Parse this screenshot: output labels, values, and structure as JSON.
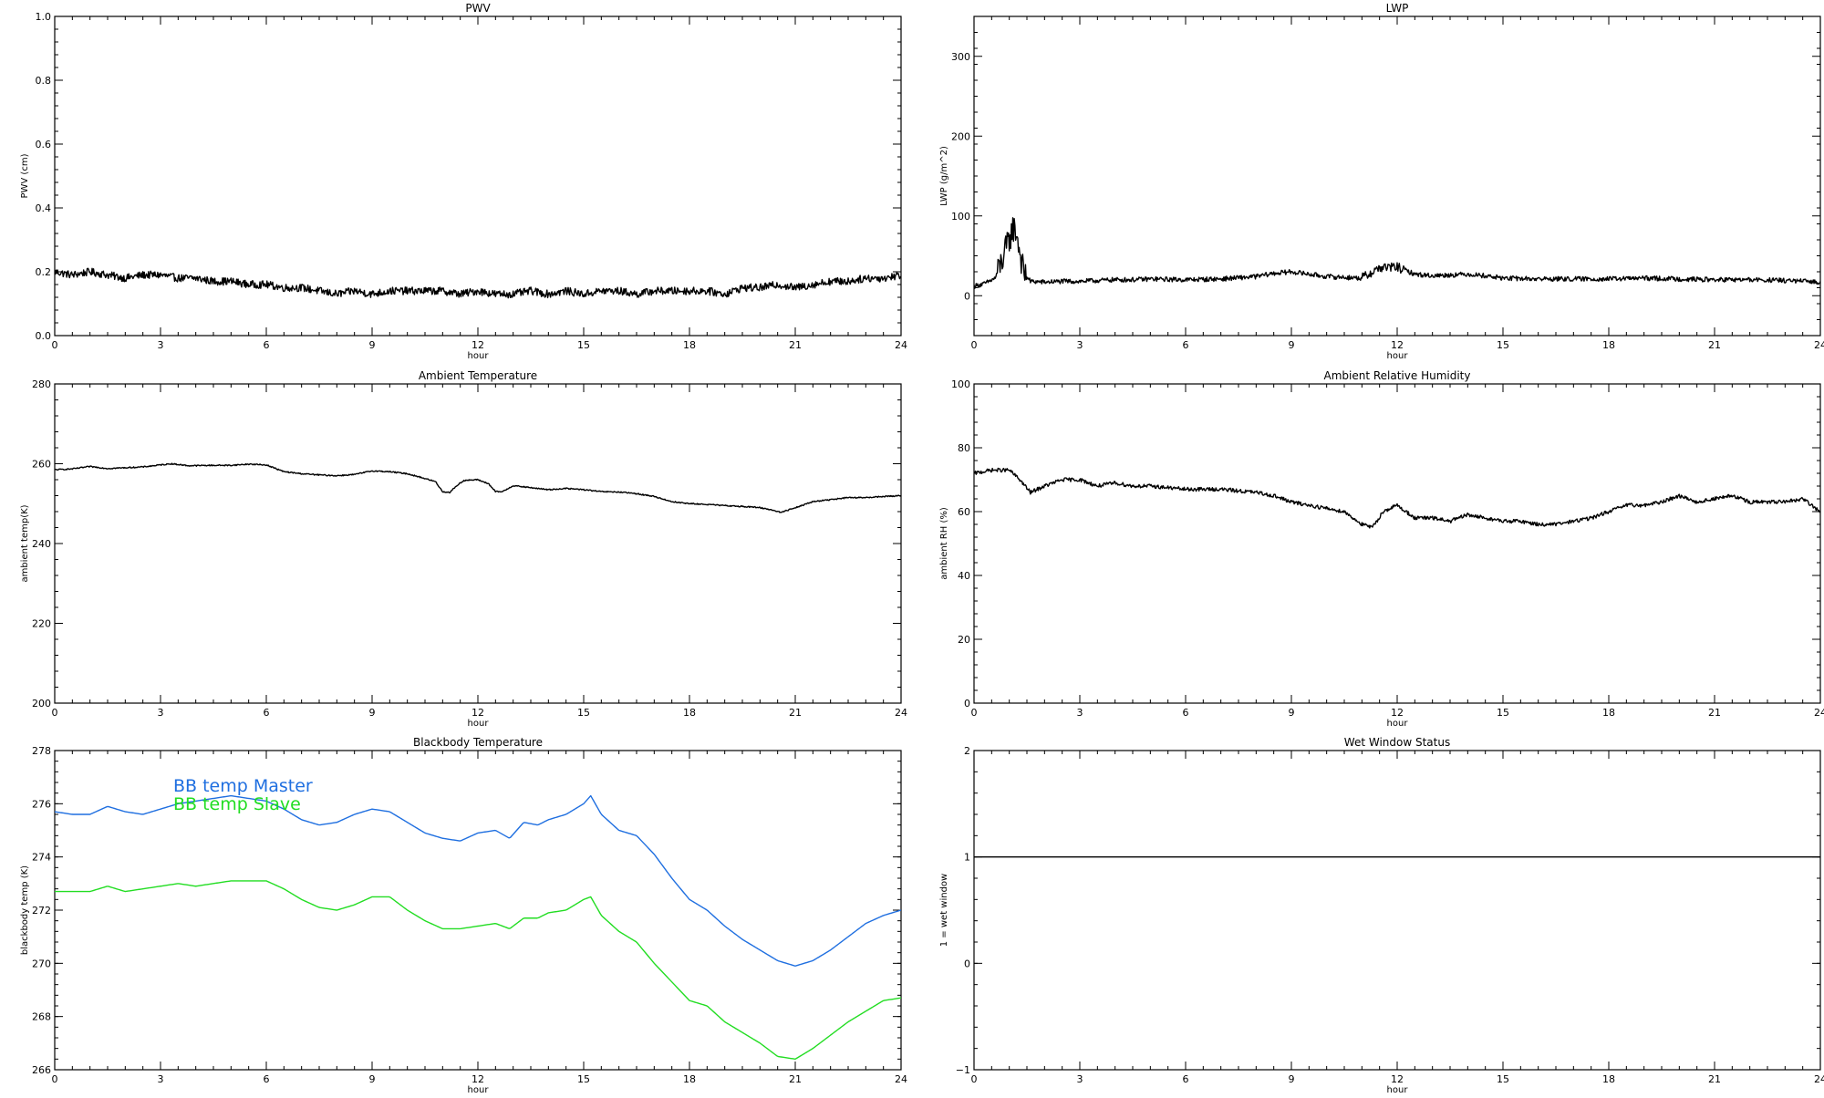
{
  "chart_data": [
    {
      "type": "line",
      "title": "PWV",
      "xlabel": "hour",
      "ylabel": "PWV (cm)",
      "xlim": [
        0,
        24
      ],
      "ylim": [
        0.0,
        1.0
      ],
      "xticks": [
        0,
        3,
        6,
        9,
        12,
        15,
        18,
        21,
        24
      ],
      "yticks": [
        "0.0",
        "0.2",
        "0.4",
        "0.6",
        "0.8",
        "1.0"
      ],
      "yticks_values": [
        0,
        0.2,
        0.4,
        0.6,
        0.8,
        1.0
      ],
      "noise": 0.012,
      "series": [
        {
          "color": "#000000",
          "x": [
            0,
            0.5,
            1,
            1.5,
            2,
            2.5,
            3,
            3.5,
            4,
            4.5,
            5,
            5.5,
            6,
            6.5,
            7,
            7.5,
            8,
            8.5,
            9,
            9.5,
            10,
            10.5,
            11,
            11.5,
            12,
            12.5,
            13,
            13.5,
            14,
            14.5,
            15,
            15.5,
            16,
            16.5,
            17,
            17.5,
            18,
            18.5,
            19,
            19.5,
            20,
            20.5,
            21,
            21.5,
            22,
            22.5,
            23,
            23.5,
            24
          ],
          "y": [
            0.2,
            0.19,
            0.2,
            0.19,
            0.18,
            0.19,
            0.19,
            0.18,
            0.18,
            0.17,
            0.17,
            0.16,
            0.16,
            0.15,
            0.15,
            0.14,
            0.13,
            0.14,
            0.13,
            0.14,
            0.14,
            0.14,
            0.14,
            0.13,
            0.14,
            0.13,
            0.13,
            0.14,
            0.13,
            0.14,
            0.13,
            0.14,
            0.14,
            0.13,
            0.14,
            0.14,
            0.14,
            0.14,
            0.13,
            0.15,
            0.15,
            0.16,
            0.15,
            0.16,
            0.17,
            0.17,
            0.18,
            0.18,
            0.19
          ]
        }
      ]
    },
    {
      "type": "line",
      "title": "LWP",
      "xlabel": "hour",
      "ylabel": "LWP (g/m^2)",
      "xlim": [
        0,
        24
      ],
      "ylim": [
        -50,
        350
      ],
      "xticks": [
        0,
        3,
        6,
        9,
        12,
        15,
        18,
        21,
        24
      ],
      "yticks": [
        "0",
        "100",
        "200",
        "300"
      ],
      "yticks_values": [
        0,
        100,
        200,
        300
      ],
      "noise": 3,
      "series": [
        {
          "color": "#000000",
          "x": [
            0,
            0.3,
            0.6,
            0.8,
            1.0,
            1.1,
            1.2,
            1.3,
            1.4,
            1.6,
            2,
            2.5,
            3,
            3.5,
            4,
            4.5,
            5,
            6,
            7,
            8,
            8.5,
            9,
            9.5,
            10,
            11,
            11.5,
            12,
            12.5,
            13,
            13.5,
            14,
            14.5,
            15,
            16,
            17,
            18,
            19,
            20,
            21,
            22,
            23,
            23.5,
            24
          ],
          "y": [
            12,
            15,
            22,
            45,
            70,
            85,
            80,
            55,
            30,
            18,
            17,
            18,
            18,
            19,
            20,
            20,
            21,
            20,
            21,
            24,
            28,
            30,
            27,
            24,
            22,
            35,
            36,
            27,
            25,
            26,
            27,
            25,
            22,
            21,
            21,
            21,
            22,
            21,
            20,
            20,
            19,
            18,
            17
          ]
        }
      ]
    },
    {
      "type": "line",
      "title": "Ambient Temperature",
      "xlabel": "hour",
      "ylabel": "ambient temp(K)",
      "xlim": [
        0,
        24
      ],
      "ylim": [
        200,
        280
      ],
      "xticks": [
        0,
        3,
        6,
        9,
        12,
        15,
        18,
        21,
        24
      ],
      "yticks": [
        "200",
        "220",
        "240",
        "260",
        "280"
      ],
      "yticks_values": [
        200,
        220,
        240,
        260,
        280
      ],
      "noise": 0.15,
      "series": [
        {
          "color": "#000000",
          "x": [
            0,
            0.5,
            1,
            1.5,
            2,
            2.5,
            3,
            3.3,
            3.8,
            4.5,
            5,
            5.5,
            6,
            6.5,
            7,
            7.5,
            8,
            8.5,
            9,
            9.5,
            10,
            10.5,
            10.8,
            11,
            11.2,
            11.4,
            11.6,
            12,
            12.3,
            12.5,
            12.7,
            13,
            13.5,
            14,
            14.5,
            15,
            15.5,
            16,
            16.5,
            17,
            17.5,
            18,
            18.5,
            19,
            19.5,
            20,
            20.3,
            20.6,
            21,
            21.5,
            22,
            22.5,
            23,
            23.5,
            24
          ],
          "y": [
            258.5,
            258.7,
            259.3,
            258.8,
            259,
            259.2,
            259.7,
            260,
            259.5,
            259.6,
            259.6,
            259.9,
            259.7,
            258,
            257.5,
            257.2,
            257,
            257.3,
            258.2,
            258,
            257.5,
            256.3,
            255.5,
            253,
            252.8,
            254.5,
            255.8,
            256,
            255,
            253,
            253,
            254.5,
            254,
            253.5,
            253.8,
            253.5,
            253,
            252.9,
            252.5,
            251.8,
            250.5,
            250,
            249.8,
            249.5,
            249.3,
            249,
            248.5,
            247.8,
            249,
            250.5,
            251,
            251.5,
            251.5,
            251.8,
            252
          ]
        }
      ]
    },
    {
      "type": "line",
      "title": "Ambient Relative Humidity",
      "xlabel": "hour",
      "ylabel": "ambient RH (%)",
      "xlim": [
        0,
        24
      ],
      "ylim": [
        0,
        100
      ],
      "xticks": [
        0,
        3,
        6,
        9,
        12,
        15,
        18,
        21,
        24
      ],
      "yticks": [
        "0",
        "20",
        "40",
        "60",
        "80",
        "100"
      ],
      "yticks_values": [
        0,
        20,
        40,
        60,
        80,
        100
      ],
      "noise": 0.6,
      "series": [
        {
          "color": "#000000",
          "x": [
            0,
            0.5,
            1,
            1.3,
            1.6,
            2,
            2.5,
            3,
            3.5,
            4,
            4.5,
            5,
            6,
            7,
            8,
            8.5,
            9,
            9.5,
            10,
            10.5,
            11,
            11.3,
            11.6,
            12,
            12.5,
            13,
            13.5,
            14,
            14.5,
            15,
            15.5,
            16,
            16.5,
            17,
            17.5,
            18,
            18.5,
            19,
            19.5,
            20,
            20.5,
            21,
            21.5,
            22,
            22.5,
            23,
            23.5,
            24
          ],
          "y": [
            72,
            73,
            73,
            70,
            66,
            68,
            70,
            70,
            68,
            69,
            68,
            68,
            67,
            67,
            66,
            65,
            63,
            62,
            61,
            60,
            56,
            55,
            60,
            62,
            58,
            58,
            57,
            59,
            58,
            57,
            57,
            56,
            56,
            57,
            58,
            60,
            62,
            62,
            63,
            65,
            63,
            64,
            65,
            63,
            63,
            63,
            64,
            60
          ]
        }
      ]
    },
    {
      "type": "line",
      "title": "Blackbody Temperature",
      "xlabel": "hour",
      "ylabel": "blackbody temp (K)",
      "xlim": [
        0,
        24
      ],
      "ylim": [
        266,
        278
      ],
      "xticks": [
        0,
        3,
        6,
        9,
        12,
        15,
        18,
        21,
        24
      ],
      "yticks": [
        "266",
        "268",
        "270",
        "272",
        "274",
        "276",
        "278"
      ],
      "yticks_values": [
        266,
        268,
        270,
        272,
        274,
        276,
        278
      ],
      "noise": 0,
      "legend_position": "top-left",
      "series": [
        {
          "name": "BB temp Master",
          "color": "#1f6fe0",
          "x": [
            0,
            0.5,
            1,
            1.5,
            2,
            2.5,
            3,
            3.5,
            4,
            4.5,
            5,
            5.5,
            6,
            6.5,
            7,
            7.5,
            8,
            8.5,
            9,
            9.5,
            10,
            10.5,
            11,
            11.5,
            12,
            12.5,
            12.9,
            13.3,
            13.7,
            14,
            14.5,
            15,
            15.2,
            15.5,
            16,
            16.5,
            17,
            17.5,
            18,
            18.5,
            19,
            19.5,
            20,
            20.5,
            21,
            21.5,
            22,
            22.5,
            23,
            23.5,
            24
          ],
          "y": [
            275.7,
            275.6,
            275.6,
            275.9,
            275.7,
            275.6,
            275.8,
            276,
            276.1,
            276.2,
            276.3,
            276.2,
            276.1,
            275.8,
            275.4,
            275.2,
            275.3,
            275.6,
            275.8,
            275.7,
            275.3,
            274.9,
            274.7,
            274.6,
            274.9,
            275,
            274.7,
            275.3,
            275.2,
            275.4,
            275.6,
            276,
            276.3,
            275.6,
            275,
            274.8,
            274.1,
            273.2,
            272.4,
            272,
            271.4,
            270.9,
            270.5,
            270.1,
            269.9,
            270.1,
            270.5,
            271,
            271.5,
            271.8,
            272
          ]
        },
        {
          "name": "BB temp Slave",
          "color": "#22dd22",
          "x": [
            0,
            0.5,
            1,
            1.5,
            2,
            2.5,
            3,
            3.5,
            4,
            4.5,
            5,
            5.5,
            6,
            6.5,
            7,
            7.5,
            8,
            8.5,
            9,
            9.5,
            10,
            10.5,
            11,
            11.5,
            12,
            12.5,
            12.9,
            13.3,
            13.7,
            14,
            14.5,
            15,
            15.2,
            15.5,
            16,
            16.5,
            17,
            17.5,
            18,
            18.5,
            19,
            19.5,
            20,
            20.5,
            21,
            21.5,
            22,
            22.5,
            23,
            23.5,
            24
          ],
          "y": [
            272.7,
            272.7,
            272.7,
            272.9,
            272.7,
            272.8,
            272.9,
            273,
            272.9,
            273,
            273.1,
            273.1,
            273.1,
            272.8,
            272.4,
            272.1,
            272,
            272.2,
            272.5,
            272.5,
            272,
            271.6,
            271.3,
            271.3,
            271.4,
            271.5,
            271.3,
            271.7,
            271.7,
            271.9,
            272,
            272.4,
            272.5,
            271.8,
            271.2,
            270.8,
            270,
            269.3,
            268.6,
            268.4,
            267.8,
            267.4,
            267,
            266.5,
            266.4,
            266.8,
            267.3,
            267.8,
            268.2,
            268.6,
            268.7
          ]
        }
      ]
    },
    {
      "type": "line",
      "title": "Wet Window Status",
      "xlabel": "hour",
      "ylabel": "1 = wet window",
      "xlim": [
        0,
        24
      ],
      "ylim": [
        -1,
        2
      ],
      "xticks": [
        0,
        3,
        6,
        9,
        12,
        15,
        18,
        21,
        24
      ],
      "yticks": [
        "−1",
        "0",
        "1",
        "2"
      ],
      "yticks_values": [
        -1,
        0,
        1,
        2
      ],
      "noise": 0,
      "series": [
        {
          "color": "#000000",
          "x": [
            0,
            24
          ],
          "y": [
            1,
            1
          ]
        }
      ]
    }
  ]
}
